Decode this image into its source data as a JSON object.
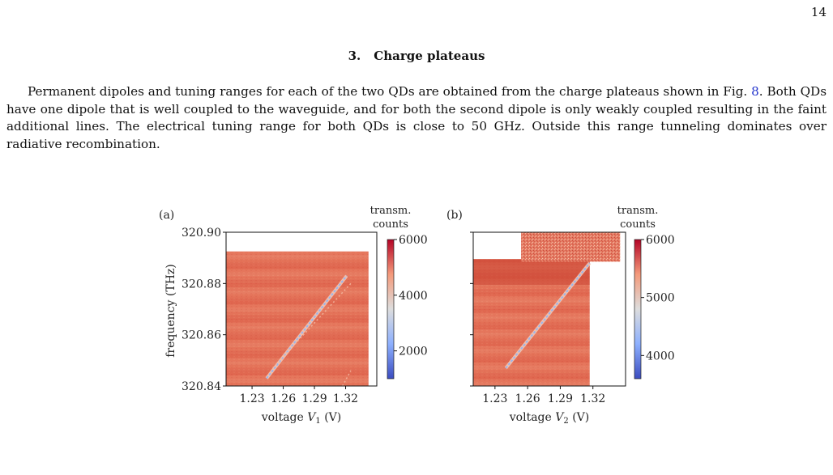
{
  "page_number": "14",
  "section": {
    "number": "3.",
    "title": "Charge plateaus"
  },
  "paragraph": {
    "text_before_link": "Permanent dipoles and tuning ranges for each of the two QDs are obtained from the charge plateaus shown in Fig. ",
    "link_text": "8",
    "text_after_link": ". Both QDs have one dipole that is well coupled to the waveguide, and for both the second dipole is only weakly coupled resulting in the faint additional lines. The electrical tuning range for both QDs is close to 50 GHz. Outside this range tunneling dominates over radiative recombination."
  },
  "colors": {
    "link": "#2233cc",
    "plot_red": "#e0644d",
    "colormap_low": "#3b4cc0",
    "colormap_mid": "#dddddd",
    "colormap_high": "#b40426"
  },
  "chart_data": [
    {
      "type": "heatmap",
      "panel_label": "(a)",
      "xlabel_prefix": "voltage ",
      "xlabel_var": "V",
      "xlabel_sub": "1",
      "xlabel_suffix": " (V)",
      "ylabel": "frequency (THz)",
      "x_ticks": [
        "1.23",
        "1.26",
        "1.29",
        "1.32"
      ],
      "x_tick_values": [
        1.23,
        1.26,
        1.29,
        1.32
      ],
      "y_ticks": [
        "320.84",
        "320.86",
        "320.88",
        "320.90"
      ],
      "y_tick_values": [
        320.84,
        320.86,
        320.88,
        320.9
      ],
      "xlim": [
        1.205,
        1.35
      ],
      "ylim": [
        320.84,
        320.9
      ],
      "data_region": {
        "x": [
          1.205,
          1.342
        ],
        "y": [
          320.84,
          320.8925
        ]
      },
      "lines": [
        {
          "from": [
            1.244,
            320.843
          ],
          "to": [
            1.321,
            320.883
          ],
          "kind": "main"
        },
        {
          "from": [
            1.25,
            320.847
          ],
          "to": [
            1.325,
            320.88
          ],
          "kind": "faint"
        },
        {
          "from": [
            1.317,
            320.84
          ],
          "to": [
            1.325,
            320.846
          ],
          "kind": "faint"
        }
      ],
      "colorbar": {
        "label_line1": "transm.",
        "label_line2": "counts",
        "ticks": [
          "2000",
          "4000",
          "6000"
        ],
        "tick_values": [
          2000,
          4000,
          6000
        ],
        "range": [
          1000,
          6000
        ]
      }
    },
    {
      "type": "heatmap",
      "panel_label": "(b)",
      "xlabel_prefix": "voltage ",
      "xlabel_var": "V",
      "xlabel_sub": "2",
      "xlabel_suffix": " (V)",
      "ylabel": "",
      "x_ticks": [
        "1.23",
        "1.26",
        "1.29",
        "1.32"
      ],
      "x_tick_values": [
        1.23,
        1.26,
        1.29,
        1.32
      ],
      "y_ticks": [],
      "y_tick_values": [
        320.84,
        320.86,
        320.88,
        320.9
      ],
      "xlim": [
        1.21,
        1.35
      ],
      "ylim": [
        320.84,
        320.9
      ],
      "data_region": {
        "x": [
          1.21,
          1.317
        ],
        "y": [
          320.84,
          320.8895
        ]
      },
      "extra_region": {
        "x": [
          1.254,
          1.345
        ],
        "y": [
          320.8885,
          320.9
        ]
      },
      "lines": [
        {
          "from": [
            1.24,
            320.847
          ],
          "to": [
            1.317,
            320.888
          ],
          "kind": "main"
        }
      ],
      "colorbar": {
        "label_line1": "transm.",
        "label_line2": "counts",
        "ticks": [
          "4000",
          "5000",
          "6000"
        ],
        "tick_values": [
          4000,
          5000,
          6000
        ],
        "range": [
          3600,
          6000
        ]
      }
    }
  ]
}
